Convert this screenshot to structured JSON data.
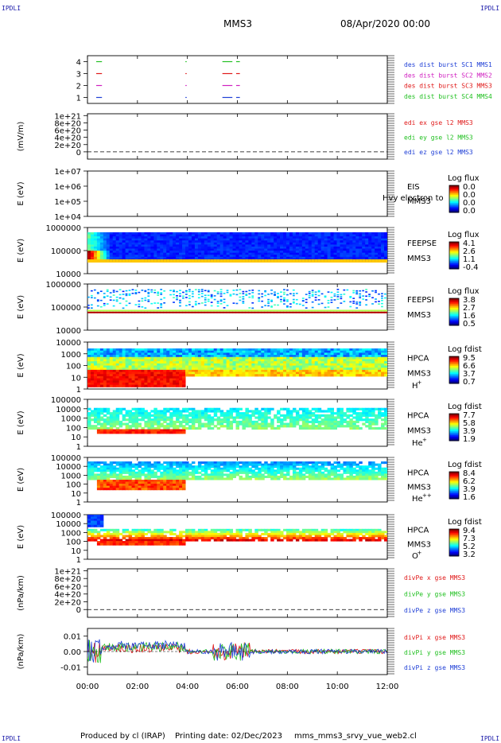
{
  "header": {
    "corner_label": "IPDLI",
    "mission": "MMS3",
    "date": "08/Apr/2020 00:00"
  },
  "footer": {
    "produced_by": "Produced by cl (IRAP)",
    "printing_date": "Printing date: 02/Dec/2023",
    "script_name": "mms_mms3_srvy_vue_web2.cl"
  },
  "colors": {
    "axis": "#000000",
    "blue": "#1f3fd6",
    "magenta": "#d020c0",
    "red": "#e01a1a",
    "green": "#22c022"
  },
  "chart_data": [
    {
      "type": "line",
      "name": "burst-availability",
      "ylim": [
        0.5,
        4.5
      ],
      "yticks": [
        "1",
        "2",
        "3",
        "4"
      ],
      "legend": [
        {
          "text": "des dist burst SC1 MMS1",
          "color": "#1f3fd6"
        },
        {
          "text": "des dist burst SC2 MMS2",
          "color": "#d020c0"
        },
        {
          "text": "des dist burst SC3 MMS3",
          "color": "#e01a1a"
        },
        {
          "text": "des dist burst SC4 MMS4",
          "color": "#22c022"
        }
      ],
      "segments": [
        {
          "level": 4,
          "x": [
            0.35,
            0.58
          ],
          "color": "#22c022"
        },
        {
          "level": 4,
          "x": [
            3.92,
            3.97
          ],
          "color": "#22c022"
        },
        {
          "level": 4,
          "x": [
            5.4,
            5.8
          ],
          "color": "#22c022"
        },
        {
          "level": 4,
          "x": [
            5.95,
            6.1
          ],
          "color": "#22c022"
        },
        {
          "level": 3,
          "x": [
            0.35,
            0.58
          ],
          "color": "#e01a1a"
        },
        {
          "level": 3,
          "x": [
            3.92,
            3.97
          ],
          "color": "#e01a1a"
        },
        {
          "level": 3,
          "x": [
            5.4,
            5.8
          ],
          "color": "#e01a1a"
        },
        {
          "level": 3,
          "x": [
            5.95,
            6.1
          ],
          "color": "#e01a1a"
        },
        {
          "level": 2,
          "x": [
            0.35,
            0.58
          ],
          "color": "#d020c0"
        },
        {
          "level": 2,
          "x": [
            3.92,
            3.97
          ],
          "color": "#d020c0"
        },
        {
          "level": 2,
          "x": [
            5.4,
            5.8
          ],
          "color": "#d020c0"
        },
        {
          "level": 2,
          "x": [
            5.95,
            6.1
          ],
          "color": "#d020c0"
        },
        {
          "level": 1,
          "x": [
            0.35,
            0.58
          ],
          "color": "#1f3fd6"
        },
        {
          "level": 1,
          "x": [
            3.92,
            3.97
          ],
          "color": "#1f3fd6"
        },
        {
          "level": 1,
          "x": [
            5.4,
            5.8
          ],
          "color": "#1f3fd6"
        },
        {
          "level": 1,
          "x": [
            5.95,
            6.1
          ],
          "color": "#1f3fd6"
        }
      ]
    },
    {
      "type": "line",
      "name": "edi-electric-field",
      "ylabel": "(mV/m)",
      "ylim": [
        -2e+20,
        1.05e+21
      ],
      "yticks": [
        "0",
        "2e+20",
        "4e+20",
        "6e+20",
        "8e+20",
        "1e+21"
      ],
      "zero_line": true,
      "legend": [
        {
          "text": "edi ex gse l2 MMS3",
          "color": "#e01a1a"
        },
        {
          "text": "edi ey gse l2 MMS3",
          "color": "#22c022"
        },
        {
          "text": "edi ez gse l2 MMS3",
          "color": "#1f3fd6"
        }
      ]
    },
    {
      "type": "heatmap",
      "name": "eis-spectrogram",
      "ylabel": "E (eV)",
      "yscale": "log",
      "ylim": [
        10000.0,
        10000000.0
      ],
      "yticks": [
        "1e+04",
        "1e+05",
        "1e+06",
        "1e+07"
      ],
      "label_lines": [
        "EIS",
        "MMS3"
      ],
      "overlay_text": "Hvy electron to",
      "colorbar_title": "Log flux",
      "colorbar_ticks": [
        "0.0",
        "0.0",
        "0.0",
        "0.0"
      ]
    },
    {
      "type": "heatmap",
      "name": "feeps-electron",
      "ylabel": "E (eV)",
      "yscale": "log",
      "ylim": [
        10000.0,
        1000000.0
      ],
      "yticks": [
        "10000",
        "100000",
        "1000000"
      ],
      "label_lines": [
        "FEEPSE",
        "MMS3"
      ],
      "colorbar_title": "Log flux",
      "colorbar_ticks": [
        "4.1",
        "2.6",
        "1.1",
        "-0.4"
      ]
    },
    {
      "type": "heatmap",
      "name": "feeps-ion",
      "ylabel": "E (eV)",
      "yscale": "log",
      "ylim": [
        10000.0,
        1000000.0
      ],
      "yticks": [
        "10000",
        "100000",
        "1000000"
      ],
      "label_lines": [
        "FEEPSI",
        "MMS3"
      ],
      "colorbar_title": "Log flux",
      "colorbar_ticks": [
        "3.8",
        "2.7",
        "1.6",
        "0.5"
      ]
    },
    {
      "type": "heatmap",
      "name": "hpca-hplus",
      "ylabel": "E (eV)",
      "yscale": "log",
      "ylim": [
        1,
        10000.0
      ],
      "yticks": [
        "1",
        "10",
        "100",
        "1000",
        "10000"
      ],
      "label_lines": [
        "HPCA",
        "MMS3"
      ],
      "species": "H",
      "species_sup": "+",
      "colorbar_title": "Log fdist",
      "colorbar_ticks": [
        "9.5",
        "6.6",
        "3.7",
        "0.7"
      ]
    },
    {
      "type": "heatmap",
      "name": "hpca-heplus",
      "ylabel": "E (eV)",
      "yscale": "log",
      "ylim": [
        1,
        100000.0
      ],
      "yticks": [
        "1",
        "10",
        "100",
        "1000",
        "10000",
        "100000"
      ],
      "label_lines": [
        "HPCA",
        "MMS3"
      ],
      "species": "He",
      "species_sup": "+",
      "colorbar_title": "Log fdist",
      "colorbar_ticks": [
        "7.7",
        "5.8",
        "3.9",
        "1.9"
      ]
    },
    {
      "type": "heatmap",
      "name": "hpca-heplusplus",
      "ylabel": "E (eV)",
      "yscale": "log",
      "ylim": [
        1,
        100000.0
      ],
      "yticks": [
        "1",
        "10",
        "100",
        "1000",
        "10000",
        "100000"
      ],
      "label_lines": [
        "HPCA",
        "MMS3"
      ],
      "species": "He",
      "species_sup": "++",
      "colorbar_title": "Log fdist",
      "colorbar_ticks": [
        "8.4",
        "6.2",
        "3.9",
        "1.6"
      ]
    },
    {
      "type": "heatmap",
      "name": "hpca-oplus",
      "ylabel": "E (eV)",
      "yscale": "log",
      "ylim": [
        1,
        100000.0
      ],
      "yticks": [
        "1",
        "10",
        "100",
        "1000",
        "10000",
        "100000"
      ],
      "label_lines": [
        "HPCA",
        "MMS3"
      ],
      "species": "O",
      "species_sup": "+",
      "colorbar_title": "Log fdist",
      "colorbar_ticks": [
        "9.4",
        "7.3",
        "5.2",
        "3.2"
      ]
    },
    {
      "type": "line",
      "name": "divpe",
      "ylabel": "(nPa/km)",
      "ylim": [
        -2e+20,
        1.05e+21
      ],
      "yticks": [
        "0",
        "2e+20",
        "4e+20",
        "6e+20",
        "8e+20",
        "1e+21"
      ],
      "zero_line": true,
      "legend": [
        {
          "text": "divPe x gse MMS3",
          "color": "#e01a1a"
        },
        {
          "text": "divPe y gse MMS3",
          "color": "#22c022"
        },
        {
          "text": "divPe z gse MMS3",
          "color": "#1f3fd6"
        }
      ]
    },
    {
      "type": "line",
      "name": "divpi",
      "ylabel": "(nPa/km)",
      "ylim": [
        -0.015,
        0.015
      ],
      "yticks": [
        "-0.01",
        "0.00",
        "0.01"
      ],
      "legend": [
        {
          "text": "divPi x gse MMS3",
          "color": "#e01a1a"
        },
        {
          "text": "divPi y gse MMS3",
          "color": "#22c022"
        },
        {
          "text": "divPi z gse MMS3",
          "color": "#1f3fd6"
        }
      ]
    }
  ],
  "x_axis": {
    "xlim": [
      0,
      12
    ],
    "ticks": [
      0,
      2,
      4,
      6,
      8,
      10,
      12
    ],
    "tick_labels": [
      "00:00",
      "02:00",
      "04:00",
      "06:00",
      "08:00",
      "10:00",
      "12:00"
    ]
  }
}
